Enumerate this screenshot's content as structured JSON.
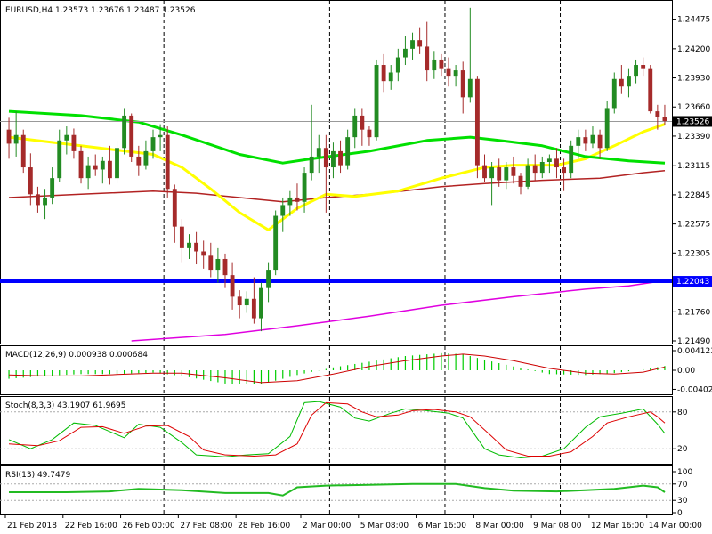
{
  "main": {
    "header": "EURUSD,H4  1.23573 1.23676 1.23487 1.23526",
    "y_ticks": [
      {
        "v": 1.24475,
        "t": "1.24475"
      },
      {
        "v": 1.242,
        "t": "1.24200"
      },
      {
        "v": 1.2393,
        "t": "1.23930"
      },
      {
        "v": 1.2366,
        "t": "1.23660"
      },
      {
        "v": 1.2339,
        "t": "1.23390"
      },
      {
        "v": 1.23115,
        "t": "1.23115"
      },
      {
        "v": 1.22845,
        "t": "1.22845"
      },
      {
        "v": 1.22575,
        "t": "1.22575"
      },
      {
        "v": 1.22305,
        "t": "1.22305"
      },
      {
        "v": 1.2176,
        "t": "1.21760"
      },
      {
        "v": 1.2149,
        "t": "1.21490"
      }
    ],
    "price_label": "1.23526",
    "price_value": 1.23526,
    "support_label": "1.22043",
    "support_value": 1.22043
  },
  "macd": {
    "header": "MACD(12,26,9) 0.000938 0.000684",
    "ticks": [
      {
        "v": 0.004123,
        "t": "0.004123"
      },
      {
        "v": 0,
        "t": "0.00"
      },
      {
        "v": -0.004023,
        "t": "-0.004023"
      }
    ]
  },
  "stoch": {
    "header": "Stoch(8,3,3) 43.1907 61.9695",
    "ticks": [
      {
        "v": 80,
        "t": "80"
      },
      {
        "v": 20,
        "t": "20"
      }
    ]
  },
  "rsi": {
    "header": "RSI(13) 49.7479",
    "ticks": [
      {
        "v": 100,
        "t": "100"
      },
      {
        "v": 70,
        "t": "70"
      },
      {
        "v": 30,
        "t": "30"
      },
      {
        "v": 0,
        "t": "0"
      }
    ]
  },
  "x_labels": [
    "21 Feb 2018",
    "22 Feb 16:00",
    "26 Feb 00:00",
    "27 Feb 08:00",
    "28 Feb 16:00",
    "2 Mar 00:00",
    "5 Mar 08:00",
    "6 Mar 16:00",
    "8 Mar 00:00",
    "9 Mar 08:00",
    "12 Mar 16:00",
    "14 Mar 00:00"
  ],
  "colors": {
    "bull": "#228b22",
    "bear": "#a52a2a",
    "ema_yellow": "#ffff00",
    "sma_green": "#00e000",
    "sma_red": "#b22222",
    "sma_magenta": "#e000e0",
    "support": "#0000ff",
    "macd_hist": "#00cc00",
    "macd_signal": "#cc0000",
    "stoch_main": "#00bb00",
    "stoch_signal": "#dd0000",
    "rsi_line": "#22bb22",
    "grid": "#000000"
  },
  "chart_data": {
    "type": "candlestick",
    "symbol": "EURUSD",
    "timeframe": "H4",
    "ylim": [
      1.2149,
      1.2462
    ],
    "candles": [
      {
        "o": 1.2345,
        "h": 1.2356,
        "l": 1.2318,
        "c": 1.2332
      },
      {
        "o": 1.2332,
        "h": 1.2362,
        "l": 1.232,
        "c": 1.234
      },
      {
        "o": 1.234,
        "h": 1.2345,
        "l": 1.2305,
        "c": 1.231
      },
      {
        "o": 1.231,
        "h": 1.2323,
        "l": 1.2275,
        "c": 1.2285
      },
      {
        "o": 1.2285,
        "h": 1.2292,
        "l": 1.2268,
        "c": 1.2275
      },
      {
        "o": 1.2275,
        "h": 1.229,
        "l": 1.2262,
        "c": 1.2282
      },
      {
        "o": 1.2282,
        "h": 1.231,
        "l": 1.2276,
        "c": 1.23
      },
      {
        "o": 1.23,
        "h": 1.2345,
        "l": 1.2296,
        "c": 1.2335
      },
      {
        "o": 1.2335,
        "h": 1.2348,
        "l": 1.2322,
        "c": 1.234
      },
      {
        "o": 1.234,
        "h": 1.2346,
        "l": 1.2318,
        "c": 1.2325
      },
      {
        "o": 1.2325,
        "h": 1.233,
        "l": 1.2295,
        "c": 1.23
      },
      {
        "o": 1.23,
        "h": 1.232,
        "l": 1.229,
        "c": 1.2312
      },
      {
        "o": 1.2312,
        "h": 1.2322,
        "l": 1.2302,
        "c": 1.2308
      },
      {
        "o": 1.2308,
        "h": 1.232,
        "l": 1.2295,
        "c": 1.2316
      },
      {
        "o": 1.2316,
        "h": 1.233,
        "l": 1.2294,
        "c": 1.23
      },
      {
        "o": 1.23,
        "h": 1.2335,
        "l": 1.2295,
        "c": 1.2328
      },
      {
        "o": 1.2328,
        "h": 1.2365,
        "l": 1.2322,
        "c": 1.2358
      },
      {
        "o": 1.2358,
        "h": 1.236,
        "l": 1.2315,
        "c": 1.232
      },
      {
        "o": 1.232,
        "h": 1.233,
        "l": 1.2302,
        "c": 1.2312
      },
      {
        "o": 1.2312,
        "h": 1.2335,
        "l": 1.2308,
        "c": 1.2325
      },
      {
        "o": 1.2325,
        "h": 1.2345,
        "l": 1.2318,
        "c": 1.2338
      },
      {
        "o": 1.2338,
        "h": 1.235,
        "l": 1.2325,
        "c": 1.234
      },
      {
        "o": 1.234,
        "h": 1.2348,
        "l": 1.2282,
        "c": 1.229
      },
      {
        "o": 1.229,
        "h": 1.2294,
        "l": 1.224,
        "c": 1.2255
      },
      {
        "o": 1.2255,
        "h": 1.2262,
        "l": 1.2222,
        "c": 1.2235
      },
      {
        "o": 1.2235,
        "h": 1.2248,
        "l": 1.2225,
        "c": 1.224
      },
      {
        "o": 1.224,
        "h": 1.225,
        "l": 1.222,
        "c": 1.2232
      },
      {
        "o": 1.2232,
        "h": 1.2242,
        "l": 1.2216,
        "c": 1.2228
      },
      {
        "o": 1.2228,
        "h": 1.224,
        "l": 1.2208,
        "c": 1.2215
      },
      {
        "o": 1.2215,
        "h": 1.2235,
        "l": 1.2203,
        "c": 1.2225
      },
      {
        "o": 1.2225,
        "h": 1.223,
        "l": 1.2198,
        "c": 1.221
      },
      {
        "o": 1.221,
        "h": 1.2222,
        "l": 1.2178,
        "c": 1.219
      },
      {
        "o": 1.219,
        "h": 1.2196,
        "l": 1.217,
        "c": 1.2182
      },
      {
        "o": 1.2182,
        "h": 1.2195,
        "l": 1.2175,
        "c": 1.2188
      },
      {
        "o": 1.2188,
        "h": 1.2208,
        "l": 1.2165,
        "c": 1.217
      },
      {
        "o": 1.217,
        "h": 1.2203,
        "l": 1.2158,
        "c": 1.2198
      },
      {
        "o": 1.2198,
        "h": 1.2222,
        "l": 1.2185,
        "c": 1.2215
      },
      {
        "o": 1.2215,
        "h": 1.227,
        "l": 1.221,
        "c": 1.2265
      },
      {
        "o": 1.2265,
        "h": 1.2282,
        "l": 1.225,
        "c": 1.2275
      },
      {
        "o": 1.2275,
        "h": 1.2288,
        "l": 1.2265,
        "c": 1.2282
      },
      {
        "o": 1.2282,
        "h": 1.2295,
        "l": 1.227,
        "c": 1.2278
      },
      {
        "o": 1.2278,
        "h": 1.231,
        "l": 1.2268,
        "c": 1.2305
      },
      {
        "o": 1.2305,
        "h": 1.2368,
        "l": 1.2298,
        "c": 1.232
      },
      {
        "o": 1.232,
        "h": 1.234,
        "l": 1.2305,
        "c": 1.2328
      },
      {
        "o": 1.2328,
        "h": 1.234,
        "l": 1.2268,
        "c": 1.231
      },
      {
        "o": 1.231,
        "h": 1.2333,
        "l": 1.23,
        "c": 1.2325
      },
      {
        "o": 1.2325,
        "h": 1.2335,
        "l": 1.2305,
        "c": 1.2312
      },
      {
        "o": 1.2312,
        "h": 1.2345,
        "l": 1.2308,
        "c": 1.2338
      },
      {
        "o": 1.2338,
        "h": 1.2365,
        "l": 1.2328,
        "c": 1.2358
      },
      {
        "o": 1.2358,
        "h": 1.2365,
        "l": 1.233,
        "c": 1.2345
      },
      {
        "o": 1.2345,
        "h": 1.2348,
        "l": 1.233,
        "c": 1.2338
      },
      {
        "o": 1.2338,
        "h": 1.241,
        "l": 1.2335,
        "c": 1.2405
      },
      {
        "o": 1.2405,
        "h": 1.2415,
        "l": 1.238,
        "c": 1.239
      },
      {
        "o": 1.239,
        "h": 1.2405,
        "l": 1.2382,
        "c": 1.2398
      },
      {
        "o": 1.2398,
        "h": 1.242,
        "l": 1.239,
        "c": 1.2412
      },
      {
        "o": 1.2412,
        "h": 1.2432,
        "l": 1.2405,
        "c": 1.242
      },
      {
        "o": 1.242,
        "h": 1.2435,
        "l": 1.241,
        "c": 1.2428
      },
      {
        "o": 1.2428,
        "h": 1.244,
        "l": 1.2415,
        "c": 1.2422
      },
      {
        "o": 1.2422,
        "h": 1.2445,
        "l": 1.239,
        "c": 1.24
      },
      {
        "o": 1.24,
        "h": 1.2418,
        "l": 1.2392,
        "c": 1.241
      },
      {
        "o": 1.241,
        "h": 1.2415,
        "l": 1.2395,
        "c": 1.2402
      },
      {
        "o": 1.2402,
        "h": 1.2412,
        "l": 1.2385,
        "c": 1.2395
      },
      {
        "o": 1.2395,
        "h": 1.2405,
        "l": 1.2385,
        "c": 1.24
      },
      {
        "o": 1.24,
        "h": 1.2408,
        "l": 1.236,
        "c": 1.2375
      },
      {
        "o": 1.2375,
        "h": 1.2458,
        "l": 1.237,
        "c": 1.2392
      },
      {
        "o": 1.2392,
        "h": 1.2395,
        "l": 1.23,
        "c": 1.2312
      },
      {
        "o": 1.2312,
        "h": 1.2322,
        "l": 1.2296,
        "c": 1.23
      },
      {
        "o": 1.23,
        "h": 1.2315,
        "l": 1.2275,
        "c": 1.231
      },
      {
        "o": 1.231,
        "h": 1.2318,
        "l": 1.2292,
        "c": 1.2298
      },
      {
        "o": 1.2298,
        "h": 1.2315,
        "l": 1.229,
        "c": 1.231
      },
      {
        "o": 1.231,
        "h": 1.232,
        "l": 1.2295,
        "c": 1.2302
      },
      {
        "o": 1.2302,
        "h": 1.2305,
        "l": 1.2285,
        "c": 1.2292
      },
      {
        "o": 1.2292,
        "h": 1.2318,
        "l": 1.229,
        "c": 1.2312
      },
      {
        "o": 1.2312,
        "h": 1.2322,
        "l": 1.2298,
        "c": 1.2305
      },
      {
        "o": 1.2305,
        "h": 1.232,
        "l": 1.23,
        "c": 1.2315
      },
      {
        "o": 1.2315,
        "h": 1.2322,
        "l": 1.2305,
        "c": 1.2318
      },
      {
        "o": 1.2318,
        "h": 1.2328,
        "l": 1.23,
        "c": 1.231
      },
      {
        "o": 1.231,
        "h": 1.2318,
        "l": 1.2288,
        "c": 1.2305
      },
      {
        "o": 1.2305,
        "h": 1.2335,
        "l": 1.23,
        "c": 1.233
      },
      {
        "o": 1.233,
        "h": 1.2345,
        "l": 1.2318,
        "c": 1.2338
      },
      {
        "o": 1.2338,
        "h": 1.2345,
        "l": 1.2325,
        "c": 1.2332
      },
      {
        "o": 1.2332,
        "h": 1.2348,
        "l": 1.2328,
        "c": 1.234
      },
      {
        "o": 1.234,
        "h": 1.2345,
        "l": 1.2318,
        "c": 1.2328
      },
      {
        "o": 1.2328,
        "h": 1.2372,
        "l": 1.2325,
        "c": 1.2365
      },
      {
        "o": 1.2365,
        "h": 1.2398,
        "l": 1.236,
        "c": 1.2392
      },
      {
        "o": 1.2392,
        "h": 1.2405,
        "l": 1.2378,
        "c": 1.2385
      },
      {
        "o": 1.2385,
        "h": 1.2402,
        "l": 1.2375,
        "c": 1.2395
      },
      {
        "o": 1.2395,
        "h": 1.241,
        "l": 1.2388,
        "c": 1.2405
      },
      {
        "o": 1.2405,
        "h": 1.2412,
        "l": 1.2395,
        "c": 1.2402
      },
      {
        "o": 1.2402,
        "h": 1.2405,
        "l": 1.236,
        "c": 1.2362
      },
      {
        "o": 1.2362,
        "h": 1.2368,
        "l": 1.2345,
        "c": 1.2357
      },
      {
        "o": 1.2357,
        "h": 1.2368,
        "l": 1.2349,
        "c": 1.2353
      }
    ],
    "ema_yellow": [
      [
        0,
        1.2338
      ],
      [
        10,
        1.233
      ],
      [
        20,
        1.2322
      ],
      [
        24,
        1.231
      ],
      [
        28,
        1.229
      ],
      [
        32,
        1.2268
      ],
      [
        36,
        1.2252
      ],
      [
        40,
        1.2272
      ],
      [
        44,
        1.2285
      ],
      [
        48,
        1.2283
      ],
      [
        54,
        1.2288
      ],
      [
        60,
        1.23
      ],
      [
        66,
        1.231
      ],
      [
        70,
        1.2312
      ],
      [
        76,
        1.2312
      ],
      [
        80,
        1.2318
      ],
      [
        84,
        1.233
      ],
      [
        88,
        1.2343
      ],
      [
        91,
        1.235
      ]
    ],
    "sma_green": [
      [
        0,
        1.2362
      ],
      [
        10,
        1.2358
      ],
      [
        18,
        1.2352
      ],
      [
        24,
        1.234
      ],
      [
        32,
        1.2322
      ],
      [
        38,
        1.2314
      ],
      [
        42,
        1.2318
      ],
      [
        50,
        1.2325
      ],
      [
        58,
        1.2335
      ],
      [
        64,
        1.2338
      ],
      [
        68,
        1.2335
      ],
      [
        74,
        1.233
      ],
      [
        80,
        1.232
      ],
      [
        86,
        1.2316
      ],
      [
        91,
        1.2314
      ]
    ],
    "sma_red": [
      [
        0,
        1.2282
      ],
      [
        10,
        1.2285
      ],
      [
        20,
        1.2288
      ],
      [
        26,
        1.2286
      ],
      [
        32,
        1.2282
      ],
      [
        38,
        1.2278
      ],
      [
        44,
        1.2282
      ],
      [
        52,
        1.2286
      ],
      [
        60,
        1.2292
      ],
      [
        66,
        1.2295
      ],
      [
        74,
        1.2298
      ],
      [
        82,
        1.23
      ],
      [
        88,
        1.2305
      ],
      [
        91,
        1.2307
      ]
    ],
    "sma_magenta": [
      [
        17,
        1.2149
      ],
      [
        30,
        1.2155
      ],
      [
        40,
        1.2163
      ],
      [
        50,
        1.2172
      ],
      [
        60,
        1.2182
      ],
      [
        70,
        1.219
      ],
      [
        80,
        1.2197
      ],
      [
        86,
        1.22
      ],
      [
        91,
        1.2205
      ]
    ],
    "macd_main": [
      [
        0,
        -0.0018
      ],
      [
        5,
        -0.0012
      ],
      [
        10,
        -0.0008
      ],
      [
        15,
        -0.0008
      ],
      [
        20,
        -0.0005
      ],
      [
        24,
        -0.0012
      ],
      [
        30,
        -0.0028
      ],
      [
        35,
        -0.003
      ],
      [
        40,
        -0.001
      ],
      [
        45,
        0.0006
      ],
      [
        50,
        0.0018
      ],
      [
        55,
        0.003
      ],
      [
        60,
        0.0036
      ],
      [
        63,
        0.0034
      ],
      [
        66,
        0.0022
      ],
      [
        70,
        0.0008
      ],
      [
        75,
        -0.0008
      ],
      [
        80,
        -0.001
      ],
      [
        84,
        -0.0006
      ],
      [
        88,
        0.0002
      ],
      [
        91,
        0.0009
      ]
    ],
    "macd_signal": [
      [
        0,
        -0.001
      ],
      [
        5,
        -0.0012
      ],
      [
        10,
        -0.0012
      ],
      [
        15,
        -0.0009
      ],
      [
        20,
        -0.0006
      ],
      [
        24,
        -0.0006
      ],
      [
        30,
        -0.0016
      ],
      [
        35,
        -0.0026
      ],
      [
        40,
        -0.0022
      ],
      [
        45,
        -0.0008
      ],
      [
        50,
        0.0008
      ],
      [
        55,
        0.002
      ],
      [
        60,
        0.003
      ],
      [
        63,
        0.0034
      ],
      [
        66,
        0.003
      ],
      [
        70,
        0.002
      ],
      [
        75,
        0.0004
      ],
      [
        80,
        -0.0006
      ],
      [
        84,
        -0.0008
      ],
      [
        88,
        -0.0004
      ],
      [
        91,
        0.0007
      ]
    ],
    "stoch_main": [
      [
        0,
        35
      ],
      [
        3,
        20
      ],
      [
        6,
        35
      ],
      [
        9,
        62
      ],
      [
        12,
        58
      ],
      [
        16,
        38
      ],
      [
        18,
        60
      ],
      [
        21,
        55
      ],
      [
        24,
        30
      ],
      [
        26,
        10
      ],
      [
        30,
        7
      ],
      [
        33,
        10
      ],
      [
        36,
        12
      ],
      [
        39,
        40
      ],
      [
        41,
        95
      ],
      [
        43,
        97
      ],
      [
        46,
        88
      ],
      [
        48,
        70
      ],
      [
        50,
        65
      ],
      [
        53,
        78
      ],
      [
        55,
        85
      ],
      [
        58,
        82
      ],
      [
        61,
        78
      ],
      [
        63,
        70
      ],
      [
        66,
        20
      ],
      [
        68,
        10
      ],
      [
        71,
        5
      ],
      [
        74,
        8
      ],
      [
        77,
        20
      ],
      [
        80,
        55
      ],
      [
        82,
        72
      ],
      [
        85,
        78
      ],
      [
        88,
        85
      ],
      [
        90,
        60
      ],
      [
        91,
        45
      ]
    ],
    "stoch_signal": [
      [
        0,
        28
      ],
      [
        4,
        25
      ],
      [
        7,
        33
      ],
      [
        10,
        55
      ],
      [
        13,
        56
      ],
      [
        16,
        45
      ],
      [
        19,
        57
      ],
      [
        22,
        58
      ],
      [
        25,
        40
      ],
      [
        27,
        18
      ],
      [
        30,
        10
      ],
      [
        34,
        8
      ],
      [
        37,
        10
      ],
      [
        40,
        28
      ],
      [
        42,
        75
      ],
      [
        44,
        95
      ],
      [
        47,
        93
      ],
      [
        49,
        80
      ],
      [
        51,
        72
      ],
      [
        54,
        75
      ],
      [
        56,
        82
      ],
      [
        59,
        84
      ],
      [
        62,
        80
      ],
      [
        64,
        72
      ],
      [
        67,
        40
      ],
      [
        69,
        18
      ],
      [
        72,
        8
      ],
      [
        75,
        8
      ],
      [
        78,
        15
      ],
      [
        81,
        40
      ],
      [
        83,
        62
      ],
      [
        86,
        72
      ],
      [
        89,
        80
      ],
      [
        90,
        72
      ],
      [
        91,
        62
      ]
    ],
    "rsi": [
      [
        0,
        50
      ],
      [
        8,
        50
      ],
      [
        14,
        52
      ],
      [
        18,
        58
      ],
      [
        24,
        55
      ],
      [
        30,
        48
      ],
      [
        36,
        48
      ],
      [
        38,
        42
      ],
      [
        40,
        62
      ],
      [
        44,
        66
      ],
      [
        50,
        68
      ],
      [
        56,
        70
      ],
      [
        62,
        70
      ],
      [
        66,
        60
      ],
      [
        70,
        54
      ],
      [
        76,
        52
      ],
      [
        80,
        55
      ],
      [
        84,
        58
      ],
      [
        88,
        66
      ],
      [
        90,
        62
      ],
      [
        91,
        50
      ]
    ]
  }
}
